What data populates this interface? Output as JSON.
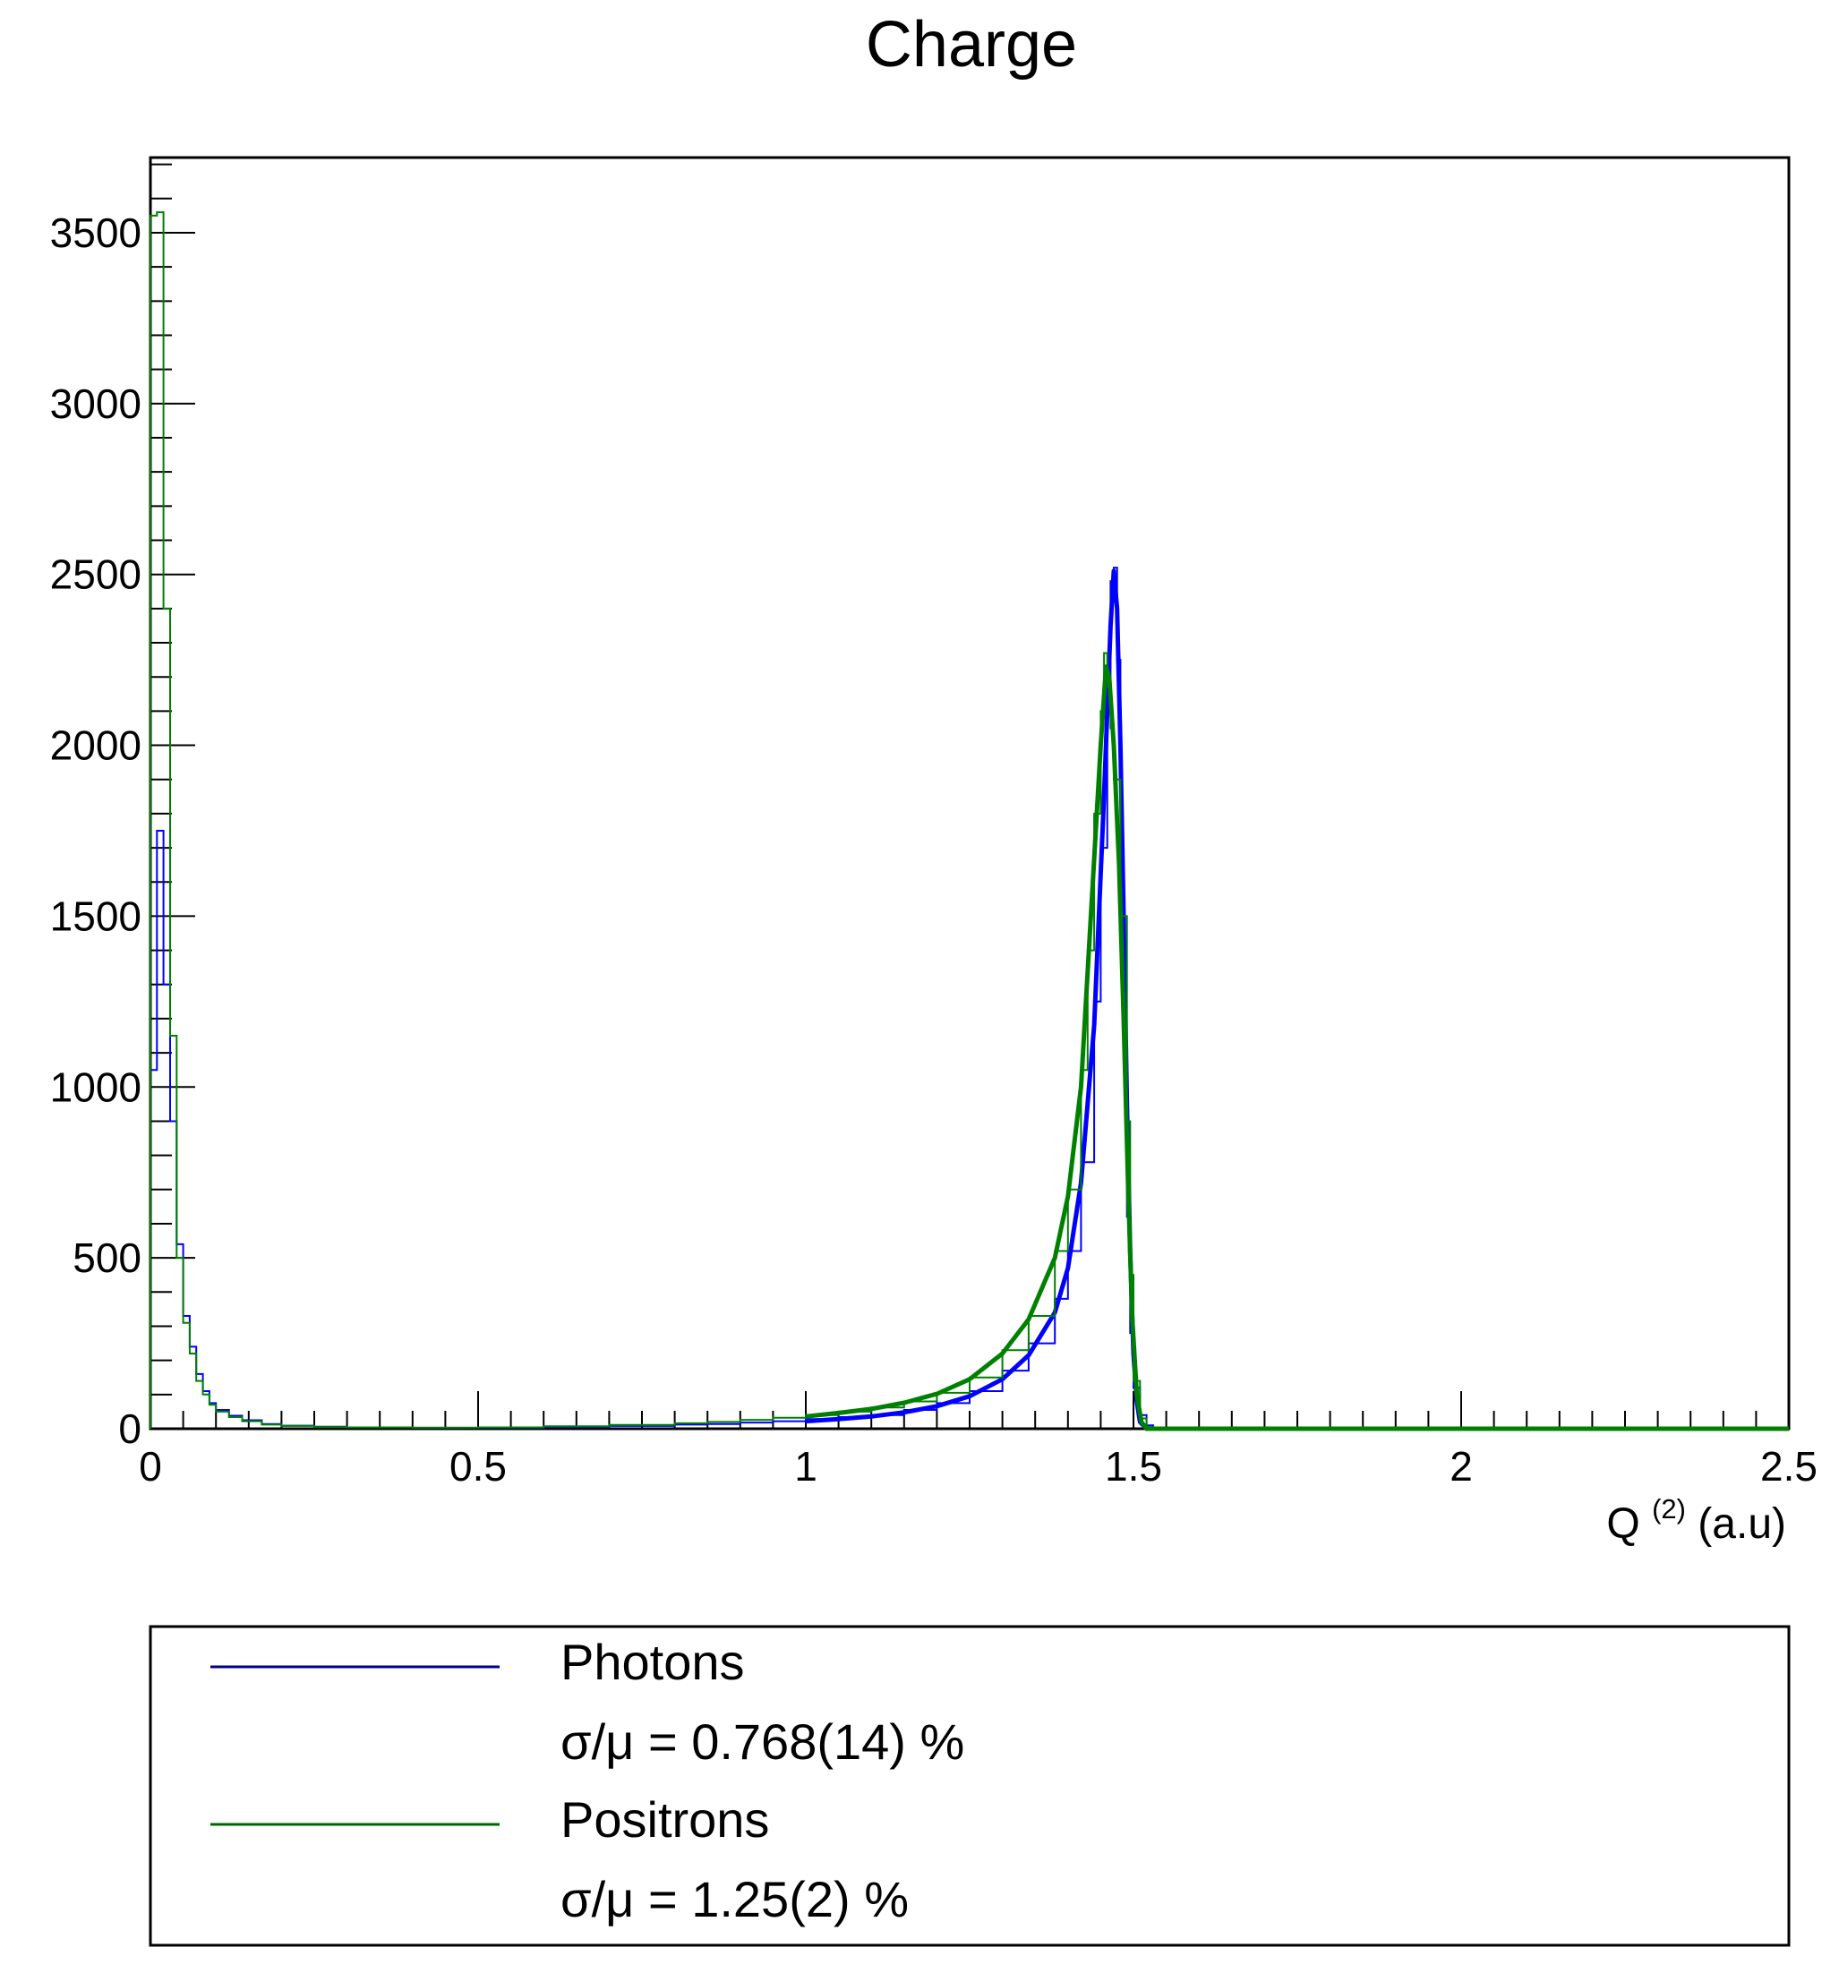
{
  "chart_data": {
    "type": "histogram",
    "title": "Charge",
    "xlabel": "Q",
    "xlabel_superscript": "(2)",
    "xlabel_unit": "(a.u)",
    "ylabel": "",
    "xlim": [
      0,
      2.5
    ],
    "ylim": [
      0,
      3720
    ],
    "x_ticks": [
      0,
      0.5,
      1,
      1.5,
      2,
      2.5
    ],
    "x_tick_labels": [
      "0",
      "0.5",
      "1",
      "1.5",
      "2",
      "2.5"
    ],
    "y_ticks": [
      0,
      500,
      1000,
      1500,
      2000,
      2500,
      3000,
      3500
    ],
    "y_tick_labels": [
      "0",
      "500",
      "1000",
      "1500",
      "2000",
      "2500",
      "3000",
      "3500"
    ],
    "grid": false,
    "legend_position": "below-plot",
    "series": [
      {
        "name": "Photons",
        "color": "#0000ff",
        "legend_color": "#00008b",
        "stat_label": "σ/μ = 0.768(14)  %",
        "histogram": [
          [
            0.0,
            1050
          ],
          [
            0.01,
            1750
          ],
          [
            0.02,
            1300
          ],
          [
            0.03,
            900
          ],
          [
            0.04,
            540
          ],
          [
            0.05,
            330
          ],
          [
            0.06,
            240
          ],
          [
            0.07,
            160
          ],
          [
            0.08,
            110
          ],
          [
            0.09,
            75
          ],
          [
            0.1,
            55
          ],
          [
            0.12,
            38
          ],
          [
            0.14,
            25
          ],
          [
            0.17,
            14
          ],
          [
            0.2,
            9
          ],
          [
            0.25,
            6
          ],
          [
            0.3,
            4
          ],
          [
            0.4,
            3
          ],
          [
            0.5,
            3
          ],
          [
            0.6,
            5
          ],
          [
            0.7,
            8
          ],
          [
            0.8,
            12
          ],
          [
            0.85,
            14
          ],
          [
            0.9,
            18
          ],
          [
            0.95,
            22
          ],
          [
            1.0,
            28
          ],
          [
            1.05,
            34
          ],
          [
            1.1,
            40
          ],
          [
            1.15,
            55
          ],
          [
            1.2,
            75
          ],
          [
            1.25,
            110
          ],
          [
            1.3,
            170
          ],
          [
            1.34,
            250
          ],
          [
            1.38,
            380
          ],
          [
            1.4,
            520
          ],
          [
            1.42,
            780
          ],
          [
            1.44,
            1250
          ],
          [
            1.45,
            1700
          ],
          [
            1.46,
            2150
          ],
          [
            1.465,
            2480
          ],
          [
            1.47,
            2520
          ],
          [
            1.475,
            2250
          ],
          [
            1.48,
            1700
          ],
          [
            1.485,
            1100
          ],
          [
            1.49,
            620
          ],
          [
            1.495,
            280
          ],
          [
            1.5,
            120
          ],
          [
            1.51,
            40
          ],
          [
            1.52,
            10
          ],
          [
            1.53,
            0
          ]
        ],
        "fit": [
          [
            1.0,
            22
          ],
          [
            1.05,
            28
          ],
          [
            1.1,
            36
          ],
          [
            1.15,
            48
          ],
          [
            1.2,
            66
          ],
          [
            1.25,
            95
          ],
          [
            1.3,
            145
          ],
          [
            1.34,
            215
          ],
          [
            1.38,
            340
          ],
          [
            1.4,
            470
          ],
          [
            1.42,
            720
          ],
          [
            1.44,
            1180
          ],
          [
            1.455,
            1850
          ],
          [
            1.465,
            2350
          ],
          [
            1.47,
            2510
          ],
          [
            1.475,
            2400
          ],
          [
            1.48,
            2000
          ],
          [
            1.485,
            1500
          ],
          [
            1.49,
            950
          ],
          [
            1.495,
            520
          ],
          [
            1.5,
            220
          ],
          [
            1.505,
            80
          ],
          [
            1.51,
            20
          ],
          [
            1.52,
            0
          ],
          [
            2.5,
            0
          ]
        ]
      },
      {
        "name": "Positrons",
        "color": "#008000",
        "legend_color": "#006400",
        "stat_label": "σ/μ = 1.25(2)  %",
        "histogram": [
          [
            0.0,
            3550
          ],
          [
            0.01,
            3560
          ],
          [
            0.02,
            2400
          ],
          [
            0.03,
            1150
          ],
          [
            0.04,
            500
          ],
          [
            0.05,
            310
          ],
          [
            0.06,
            220
          ],
          [
            0.07,
            140
          ],
          [
            0.08,
            100
          ],
          [
            0.09,
            70
          ],
          [
            0.1,
            50
          ],
          [
            0.12,
            34
          ],
          [
            0.14,
            22
          ],
          [
            0.17,
            12
          ],
          [
            0.2,
            8
          ],
          [
            0.25,
            5
          ],
          [
            0.3,
            4
          ],
          [
            0.4,
            3
          ],
          [
            0.5,
            4
          ],
          [
            0.6,
            7
          ],
          [
            0.7,
            11
          ],
          [
            0.8,
            16
          ],
          [
            0.85,
            20
          ],
          [
            0.9,
            26
          ],
          [
            0.95,
            32
          ],
          [
            1.0,
            40
          ],
          [
            1.05,
            50
          ],
          [
            1.1,
            62
          ],
          [
            1.15,
            80
          ],
          [
            1.2,
            105
          ],
          [
            1.25,
            150
          ],
          [
            1.3,
            230
          ],
          [
            1.34,
            330
          ],
          [
            1.38,
            520
          ],
          [
            1.4,
            700
          ],
          [
            1.42,
            1050
          ],
          [
            1.43,
            1400
          ],
          [
            1.44,
            1800
          ],
          [
            1.45,
            2100
          ],
          [
            1.455,
            2270
          ],
          [
            1.46,
            2200
          ],
          [
            1.465,
            2050
          ],
          [
            1.47,
            1900
          ],
          [
            1.48,
            1500
          ],
          [
            1.49,
            900
          ],
          [
            1.495,
            450
          ],
          [
            1.5,
            140
          ],
          [
            1.51,
            30
          ],
          [
            1.52,
            5
          ],
          [
            1.53,
            0
          ]
        ],
        "fit": [
          [
            1.0,
            36
          ],
          [
            1.05,
            46
          ],
          [
            1.1,
            58
          ],
          [
            1.15,
            76
          ],
          [
            1.2,
            102
          ],
          [
            1.25,
            145
          ],
          [
            1.3,
            220
          ],
          [
            1.34,
            320
          ],
          [
            1.38,
            500
          ],
          [
            1.4,
            680
          ],
          [
            1.42,
            1000
          ],
          [
            1.435,
            1500
          ],
          [
            1.45,
            2000
          ],
          [
            1.458,
            2230
          ],
          [
            1.463,
            2200
          ],
          [
            1.47,
            2000
          ],
          [
            1.478,
            1650
          ],
          [
            1.485,
            1200
          ],
          [
            1.492,
            700
          ],
          [
            1.498,
            330
          ],
          [
            1.505,
            100
          ],
          [
            1.512,
            20
          ],
          [
            1.52,
            0
          ],
          [
            2.5,
            0
          ]
        ]
      }
    ]
  }
}
